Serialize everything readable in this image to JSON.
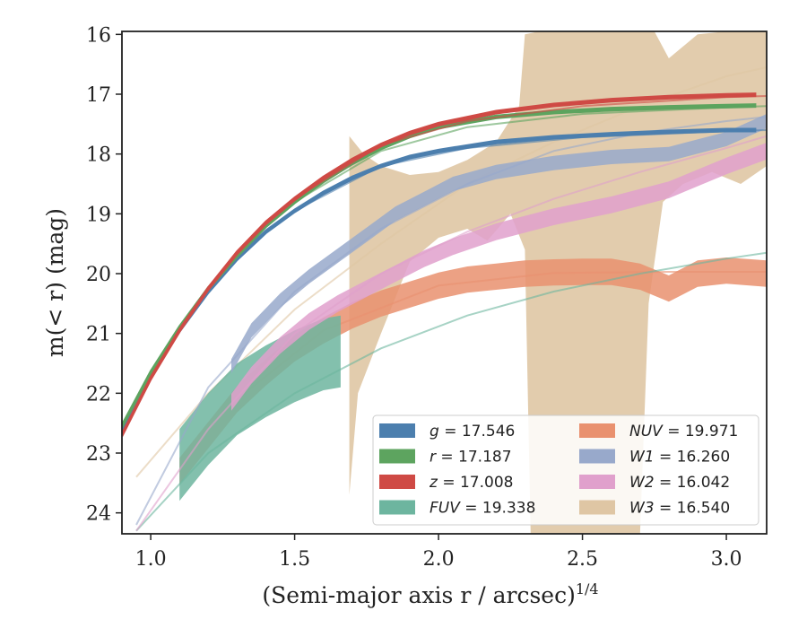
{
  "chart_data": {
    "type": "line",
    "xlabel": "(Semi-major axis r / arcsec)",
    "xlabel_exponent": "1/4",
    "ylabel": "m(< r) (mag)",
    "xlim": [
      0.9,
      3.14
    ],
    "ylim": [
      24.35,
      15.95
    ],
    "y_inverted": true,
    "x_ticks": [
      1.0,
      1.5,
      2.0,
      2.5,
      3.0
    ],
    "x_tick_labels": [
      "1.0",
      "1.5",
      "2.0",
      "2.5",
      "3.0"
    ],
    "y_ticks": [
      16,
      17,
      18,
      19,
      20,
      21,
      22,
      23,
      24
    ],
    "y_tick_labels": [
      "16",
      "17",
      "18",
      "19",
      "20",
      "21",
      "22",
      "23",
      "24"
    ],
    "grid": false,
    "legend_placement": "lower-right",
    "series": [
      {
        "key": "g",
        "label_symbol": "g",
        "label_value": "= 17.546",
        "italic": true,
        "color": "#4c7fae",
        "data_x": [
          0.9,
          1.0,
          1.1,
          1.2,
          1.3,
          1.4,
          1.5,
          1.6,
          1.7,
          1.8,
          1.9,
          2.0,
          2.2,
          2.4,
          2.6,
          2.8,
          3.0,
          3.1
        ],
        "data_y": [
          22.6,
          21.7,
          20.95,
          20.3,
          19.75,
          19.3,
          18.95,
          18.65,
          18.4,
          18.2,
          18.05,
          17.95,
          17.8,
          17.72,
          17.67,
          17.63,
          17.6,
          17.6
        ],
        "band_halfwidth": 0.02,
        "model_x": [
          1.5,
          1.8,
          2.1,
          2.5,
          3.0,
          3.14
        ],
        "model_y": [
          18.95,
          18.2,
          17.9,
          17.72,
          17.62,
          17.6
        ]
      },
      {
        "key": "r",
        "label_symbol": "r",
        "label_value": "= 17.187",
        "italic": true,
        "color": "#5da45f",
        "data_x": [
          0.9,
          1.0,
          1.1,
          1.2,
          1.3,
          1.4,
          1.5,
          1.6,
          1.7,
          1.8,
          1.9,
          2.0,
          2.2,
          2.4,
          2.6,
          2.8,
          3.0,
          3.1
        ],
        "data_y": [
          22.55,
          21.65,
          20.9,
          20.25,
          19.7,
          19.2,
          18.8,
          18.45,
          18.15,
          17.9,
          17.7,
          17.55,
          17.38,
          17.3,
          17.25,
          17.22,
          17.2,
          17.19
        ],
        "band_halfwidth": 0.02,
        "model_x": [
          1.5,
          1.8,
          2.1,
          2.5,
          3.0,
          3.14
        ],
        "model_y": [
          18.8,
          17.95,
          17.55,
          17.33,
          17.22,
          17.2
        ]
      },
      {
        "key": "z",
        "label_symbol": "z",
        "label_value": "= 17.008",
        "italic": true,
        "color": "#cf4a45",
        "data_x": [
          0.9,
          1.0,
          1.1,
          1.2,
          1.3,
          1.4,
          1.5,
          1.6,
          1.7,
          1.8,
          1.9,
          2.0,
          2.2,
          2.4,
          2.6,
          2.8,
          3.0,
          3.1
        ],
        "data_y": [
          22.7,
          21.75,
          20.95,
          20.25,
          19.65,
          19.15,
          18.75,
          18.4,
          18.1,
          17.85,
          17.65,
          17.5,
          17.3,
          17.18,
          17.1,
          17.05,
          17.02,
          17.01
        ],
        "band_halfwidth": 0.02,
        "model_x": [
          1.5,
          1.8,
          2.1,
          2.5,
          3.0,
          3.14
        ],
        "model_y": [
          18.75,
          17.85,
          17.45,
          17.2,
          17.05,
          17.03
        ]
      },
      {
        "key": "FUV",
        "label_symbol": "FUV",
        "label_value": "= 19.338",
        "italic": true,
        "color": "#6db59f",
        "data_x": [
          1.1,
          1.2,
          1.3,
          1.4,
          1.5,
          1.6,
          1.66
        ],
        "data_y": [
          23.2,
          22.6,
          22.1,
          21.8,
          21.55,
          21.35,
          21.3
        ],
        "band_halfwidth": 0.6,
        "model_x": [
          0.95,
          1.2,
          1.5,
          1.8,
          2.1,
          2.4,
          2.7,
          3.0,
          3.14
        ],
        "model_y": [
          24.3,
          23.0,
          22.0,
          21.25,
          20.7,
          20.3,
          20.0,
          19.75,
          19.65
        ]
      },
      {
        "key": "NUV",
        "label_symbol": "NUV",
        "label_value": "= 19.971",
        "italic": true,
        "color": "#e9916f",
        "data_x": [
          1.1,
          1.2,
          1.3,
          1.4,
          1.5,
          1.6,
          1.7,
          1.8,
          1.9,
          2.0,
          2.1,
          2.2,
          2.3,
          2.4,
          2.5,
          2.6,
          2.7,
          2.8,
          2.9,
          3.0,
          3.14
        ],
        "data_y": [
          23.3,
          22.7,
          22.1,
          21.65,
          21.25,
          20.95,
          20.7,
          20.5,
          20.35,
          20.2,
          20.1,
          20.05,
          20.0,
          19.98,
          19.97,
          19.97,
          20.05,
          20.25,
          20.0,
          19.95,
          20.0
        ],
        "band_halfwidth": 0.22,
        "model_x": [
          1.3,
          1.6,
          2.0,
          2.4,
          2.8,
          3.14
        ],
        "model_y": [
          22.1,
          20.95,
          20.2,
          19.99,
          19.97,
          19.97
        ]
      },
      {
        "key": "W1",
        "label_symbol": "W1",
        "label_value": "= 16.260",
        "italic": true,
        "color": "#98a9cb",
        "data_x": [
          1.28,
          1.35,
          1.45,
          1.55,
          1.65,
          1.75,
          1.85,
          1.95,
          2.05,
          2.2,
          2.4,
          2.6,
          2.8,
          3.0,
          3.14
        ],
        "data_y": [
          21.55,
          20.95,
          20.45,
          20.05,
          19.7,
          19.35,
          19.0,
          18.75,
          18.5,
          18.3,
          18.15,
          18.05,
          18.0,
          17.75,
          17.45
        ],
        "band_halfwidth": 0.12,
        "model_x": [
          0.95,
          1.2,
          1.5,
          1.8,
          2.1,
          2.4,
          2.7,
          3.0,
          3.14
        ],
        "model_y": [
          24.2,
          21.9,
          20.3,
          19.25,
          18.5,
          17.95,
          17.65,
          17.45,
          17.38
        ]
      },
      {
        "key": "W2",
        "label_symbol": "W2",
        "label_value": "= 16.042",
        "italic": true,
        "color": "#e0a0cc",
        "data_x": [
          1.28,
          1.35,
          1.45,
          1.55,
          1.65,
          1.75,
          1.85,
          1.95,
          2.05,
          2.2,
          2.4,
          2.6,
          2.8,
          3.0,
          3.14
        ],
        "data_y": [
          22.15,
          21.7,
          21.2,
          20.8,
          20.5,
          20.25,
          20.0,
          19.75,
          19.55,
          19.3,
          19.05,
          18.85,
          18.6,
          18.2,
          17.95
        ],
        "band_halfwidth": 0.14,
        "model_x": [
          0.95,
          1.2,
          1.5,
          1.8,
          2.1,
          2.4,
          2.7,
          3.0,
          3.14
        ],
        "model_y": [
          24.3,
          22.6,
          21.0,
          20.0,
          19.3,
          18.75,
          18.3,
          17.9,
          17.7
        ]
      },
      {
        "key": "W3",
        "label_symbol": "W3",
        "label_value": "= 16.540",
        "italic": true,
        "color": "#dfc6a4",
        "upper_x": [
          1.69,
          1.74,
          1.8,
          1.9,
          2.0,
          2.1,
          2.2,
          2.28,
          2.3,
          2.35,
          2.4,
          2.5,
          2.6,
          2.7,
          2.75,
          2.8,
          2.9,
          3.0,
          3.14
        ],
        "upper_y": [
          17.7,
          18.0,
          18.2,
          18.35,
          18.3,
          18.1,
          17.8,
          17.2,
          16.0,
          15.95,
          15.95,
          15.95,
          15.95,
          15.95,
          15.95,
          16.4,
          16.0,
          15.95,
          15.95
        ],
        "lower_x": [
          1.69,
          1.72,
          1.8,
          1.9,
          2.0,
          2.1,
          2.17,
          2.25,
          2.3,
          2.32,
          2.35,
          2.45,
          2.55,
          2.6,
          2.62,
          2.65,
          2.7,
          2.73,
          2.78,
          2.85,
          2.95,
          3.05,
          3.14
        ],
        "lower_y": [
          23.7,
          22.0,
          21.0,
          19.8,
          19.4,
          19.25,
          19.45,
          19.0,
          19.6,
          24.35,
          24.35,
          24.35,
          24.35,
          24.35,
          24.35,
          24.35,
          24.35,
          20.5,
          18.8,
          18.5,
          18.3,
          18.5,
          18.2
        ],
        "model_x": [
          0.95,
          1.2,
          1.5,
          1.8,
          2.1,
          2.4,
          2.7,
          3.0,
          3.14
        ],
        "model_y": [
          23.4,
          22.0,
          20.6,
          19.5,
          18.5,
          17.8,
          17.2,
          16.7,
          16.55
        ]
      }
    ],
    "legend": [
      {
        "symbol": "g",
        "value": "= 17.546",
        "color": "#4c7fae"
      },
      {
        "symbol": "r",
        "value": "= 17.187",
        "color": "#5da45f"
      },
      {
        "symbol": "z",
        "value": "= 17.008",
        "color": "#cf4a45"
      },
      {
        "symbol": "FUV",
        "value": "= 19.338",
        "color": "#6db59f"
      },
      {
        "symbol": "NUV",
        "value": "= 19.971",
        "color": "#e9916f"
      },
      {
        "symbol": "W1",
        "value": "= 16.260",
        "color": "#98a9cb"
      },
      {
        "symbol": "W2",
        "value": "= 16.042",
        "color": "#e0a0cc"
      },
      {
        "symbol": "W3",
        "value": "= 16.540",
        "color": "#dfc6a4"
      }
    ]
  }
}
